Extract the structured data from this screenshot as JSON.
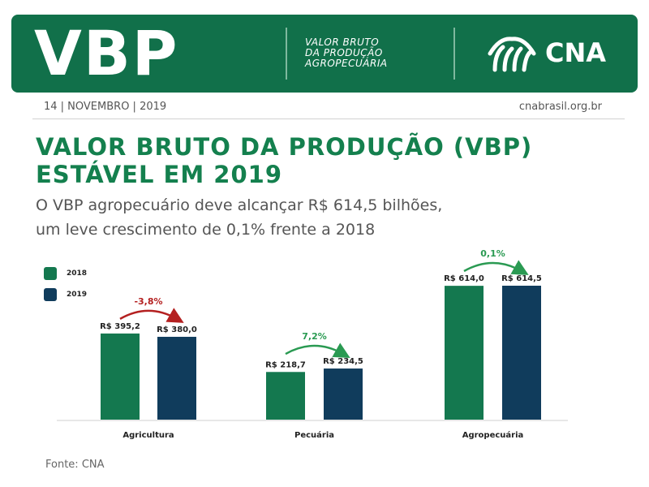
{
  "banner": {
    "big_title": "VBP",
    "subtitle_line1": "VALOR BRUTO",
    "subtitle_line2": "DA PRODUÇÃO",
    "subtitle_line3": "AGROPECUÁRIA",
    "logo_text": "CNA",
    "logo_icon": "cna-leaf-logo-icon",
    "color": "#11704a"
  },
  "meta": {
    "date": "14 | NOVEMBRO | 2019",
    "site": "cnabrasil.org.br"
  },
  "headline": {
    "line1": "VALOR BRUTO DA PRODUÇÃO (VBP)",
    "line2": "ESTÁVEL EM 2019"
  },
  "subheadline": {
    "line1": "O VBP agropecuário deve alcançar R$ 614,5 bilhões,",
    "line2": "um leve crescimento de 0,1% frente a 2018"
  },
  "source": "Fonte: CNA",
  "colors": {
    "s2018": "#14784f",
    "s2019": "#103c5c",
    "negative": "#b42020",
    "positive": "#2a9a52"
  },
  "chart_data": {
    "type": "bar",
    "categories": [
      "Agricultura",
      "Pecuária",
      "Agropecuária"
    ],
    "series": [
      {
        "name": "2018",
        "values": [
          395.2,
          218.7,
          614.0
        ],
        "labels": [
          "R$ 395,2",
          "R$ 218,7",
          "R$ 614,0"
        ]
      },
      {
        "name": "2019",
        "values": [
          380.0,
          234.5,
          614.5
        ],
        "labels": [
          "R$ 380,0",
          "R$ 234,5",
          "R$ 614,5"
        ]
      }
    ],
    "changes": [
      {
        "text": "-3,8%",
        "direction": "down"
      },
      {
        "text": "7,2%",
        "direction": "up"
      },
      {
        "text": "0,1%",
        "direction": "up"
      }
    ],
    "ylim": [
      0,
      614.5
    ],
    "legend": "top-left",
    "grid": false
  }
}
